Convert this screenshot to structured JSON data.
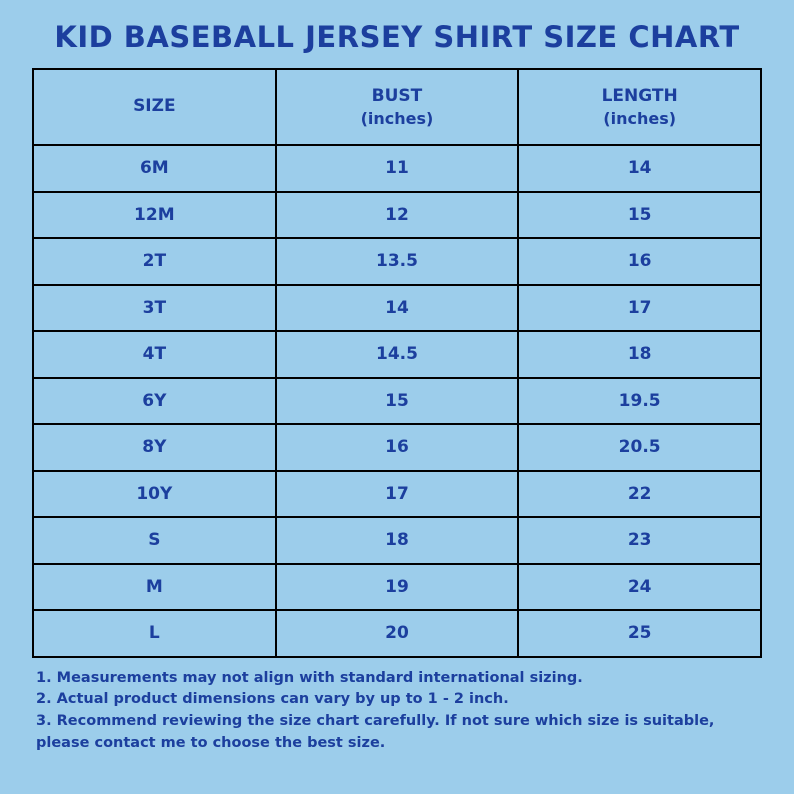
{
  "colors": {
    "background": "#9ccdeb",
    "text": "#1c3f9e",
    "border": "#000000"
  },
  "chart_data": {
    "type": "table",
    "title": "KID BASEBALL JERSEY SHIRT SIZE CHART",
    "columns": [
      {
        "label": "SIZE",
        "sub": ""
      },
      {
        "label": "BUST",
        "sub": "(inches)"
      },
      {
        "label": "LENGTH",
        "sub": "(inches)"
      }
    ],
    "rows": [
      [
        "6M",
        "11",
        "14"
      ],
      [
        "12M",
        "12",
        "15"
      ],
      [
        "2T",
        "13.5",
        "16"
      ],
      [
        "3T",
        "14",
        "17"
      ],
      [
        "4T",
        "14.5",
        "18"
      ],
      [
        "6Y",
        "15",
        "19.5"
      ],
      [
        "8Y",
        "16",
        "20.5"
      ],
      [
        "10Y",
        "17",
        "22"
      ],
      [
        "S",
        "18",
        "23"
      ],
      [
        "M",
        "19",
        "24"
      ],
      [
        "L",
        "20",
        "25"
      ]
    ]
  },
  "notes": [
    "1. Measurements may not align with standard international sizing.",
    "2. Actual product dimensions can vary by up to 1 - 2 inch.",
    "3. Recommend reviewing the size chart carefully. If not sure which size is suitable, please contact me to choose the best size."
  ]
}
